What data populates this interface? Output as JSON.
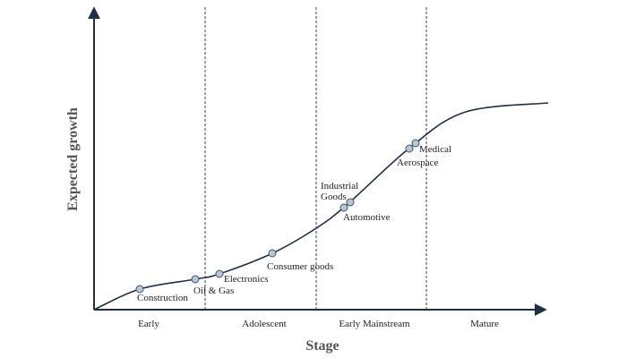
{
  "axes": {
    "x_title": "Stage",
    "y_title": "Expected growth"
  },
  "stages": [
    "Early",
    "Adolescent",
    "Early Mainstream",
    "Mature"
  ],
  "points": [
    {
      "lines": [
        "Construction"
      ]
    },
    {
      "lines": [
        "Oil & Gas"
      ]
    },
    {
      "lines": [
        "Electronics"
      ]
    },
    {
      "lines": [
        "Consumer goods"
      ]
    },
    {
      "lines": [
        "Automotive"
      ]
    },
    {
      "lines": [
        "Industrial",
        "Goods"
      ]
    },
    {
      "lines": [
        "Aerospace"
      ]
    },
    {
      "lines": [
        "Medical"
      ]
    }
  ]
}
